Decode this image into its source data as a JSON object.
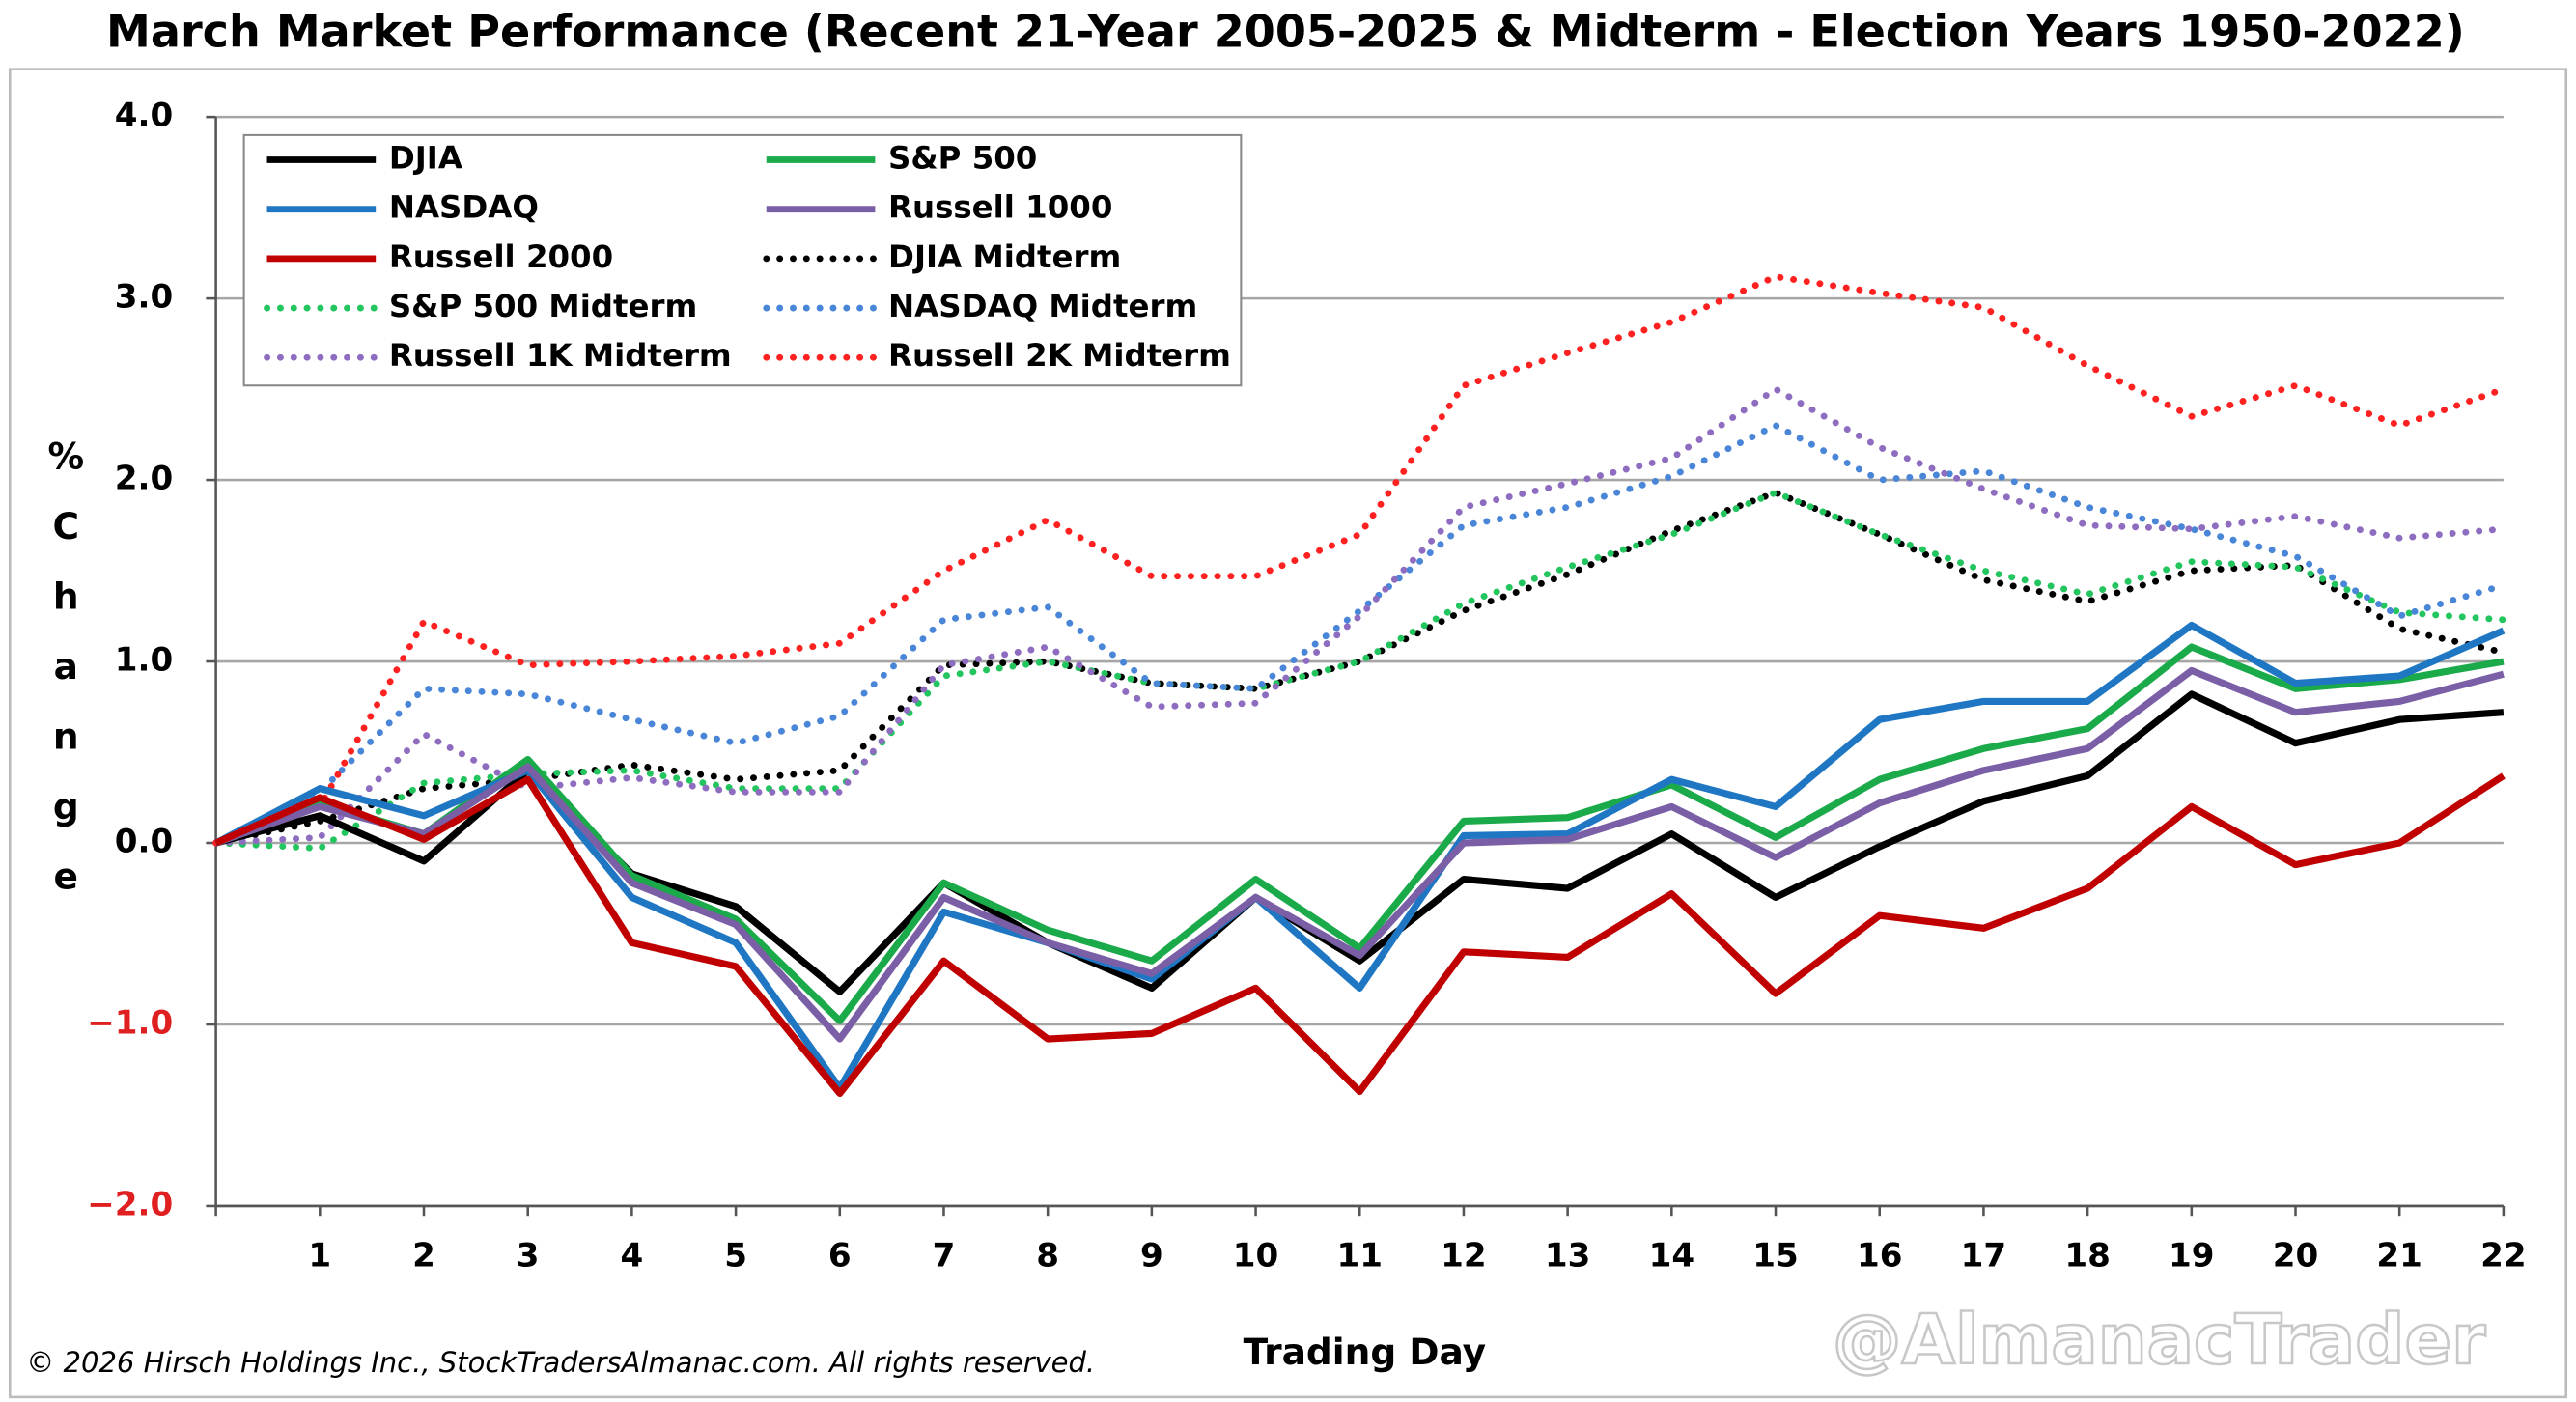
{
  "chart_data": {
    "type": "line",
    "title": "March Market Performance (Recent 21-Year 2005-2025 & Midterm - Election Years 1950-2022)",
    "y_label": "% Change",
    "x_label": "Trading Day",
    "footer": "© 2026 Hirsch Holdings Inc., StockTradersAlmanac.com. All rights reserved.",
    "watermark": "@AlmanacTrader",
    "x": [
      0,
      1,
      2,
      3,
      4,
      5,
      6,
      7,
      8,
      9,
      10,
      11,
      12,
      13,
      14,
      15,
      16,
      17,
      18,
      19,
      20,
      21,
      22
    ],
    "xlim": [
      0,
      22
    ],
    "xticks": [
      1,
      2,
      3,
      4,
      5,
      6,
      7,
      8,
      9,
      10,
      11,
      12,
      13,
      14,
      15,
      16,
      17,
      18,
      19,
      20,
      21,
      22
    ],
    "ylim": [
      -2,
      4
    ],
    "yticks": [
      {
        "value": 4,
        "label": "4.0"
      },
      {
        "value": 3,
        "label": "3.0"
      },
      {
        "value": 2,
        "label": "2.0"
      },
      {
        "value": 1,
        "label": "1.0"
      },
      {
        "value": 0,
        "label": "0.0"
      },
      {
        "value": -1,
        "label": "−1.0"
      },
      {
        "value": -2,
        "label": "−2.0"
      }
    ],
    "negative_tick_color": "#e02020",
    "grid": true,
    "legend": "top-left",
    "series": [
      {
        "name": "DJIA",
        "color": "#000000",
        "style": "solid",
        "values": [
          0,
          0.15,
          -0.1,
          0.4,
          -0.17,
          -0.35,
          -0.82,
          -0.22,
          -0.55,
          -0.8,
          -0.3,
          -0.65,
          -0.2,
          -0.25,
          0.05,
          -0.3,
          -0.02,
          0.23,
          0.37,
          0.82,
          0.55,
          0.68,
          0.72
        ]
      },
      {
        "name": "S&P 500",
        "color": "#1aaa4a",
        "style": "solid",
        "values": [
          0,
          0.22,
          0.05,
          0.46,
          -0.18,
          -0.42,
          -0.98,
          -0.22,
          -0.48,
          -0.65,
          -0.2,
          -0.58,
          0.12,
          0.14,
          0.32,
          0.03,
          0.35,
          0.52,
          0.63,
          1.08,
          0.85,
          0.9,
          1.0
        ]
      },
      {
        "name": "NASDAQ",
        "color": "#1f77c4",
        "style": "solid",
        "values": [
          0,
          0.3,
          0.15,
          0.4,
          -0.3,
          -0.55,
          -1.35,
          -0.38,
          -0.55,
          -0.75,
          -0.3,
          -0.8,
          0.04,
          0.05,
          0.35,
          0.2,
          0.68,
          0.78,
          0.78,
          1.2,
          0.88,
          0.92,
          1.17
        ]
      },
      {
        "name": "Russell 1000",
        "color": "#7a5ea6",
        "style": "solid",
        "values": [
          0,
          0.2,
          0.05,
          0.42,
          -0.22,
          -0.45,
          -1.08,
          -0.3,
          -0.55,
          -0.72,
          -0.3,
          -0.62,
          0.0,
          0.02,
          0.2,
          -0.08,
          0.22,
          0.4,
          0.52,
          0.95,
          0.72,
          0.78,
          0.93
        ]
      },
      {
        "name": "Russell 2000",
        "color": "#c00000",
        "style": "solid",
        "values": [
          0,
          0.25,
          0.02,
          0.35,
          -0.55,
          -0.68,
          -1.38,
          -0.65,
          -1.08,
          -1.05,
          -0.8,
          -1.37,
          -0.6,
          -0.63,
          -0.28,
          -0.83,
          -0.4,
          -0.47,
          -0.25,
          0.2,
          -0.12,
          0.0,
          0.37
        ]
      },
      {
        "name": "DJIA Midterm",
        "color": "#000000",
        "style": "dotted",
        "values": [
          0,
          0.12,
          0.3,
          0.35,
          0.43,
          0.35,
          0.4,
          0.98,
          1.0,
          0.88,
          0.85,
          1.0,
          1.28,
          1.48,
          1.72,
          1.93,
          1.7,
          1.45,
          1.33,
          1.5,
          1.53,
          1.18,
          1.05
        ]
      },
      {
        "name": "S&P 500 Midterm",
        "color": "#22c55e",
        "style": "dotted",
        "values": [
          0,
          -0.03,
          0.33,
          0.38,
          0.4,
          0.3,
          0.3,
          0.92,
          1.0,
          0.88,
          0.85,
          1.0,
          1.32,
          1.52,
          1.7,
          1.93,
          1.7,
          1.5,
          1.37,
          1.55,
          1.52,
          1.27,
          1.23
        ]
      },
      {
        "name": "NASDAQ Midterm",
        "color": "#4a86d8",
        "style": "dotted",
        "values": [
          0,
          0.28,
          0.85,
          0.82,
          0.68,
          0.55,
          0.7,
          1.23,
          1.3,
          0.88,
          0.85,
          1.28,
          1.75,
          1.85,
          2.02,
          2.3,
          2.0,
          2.05,
          1.85,
          1.73,
          1.58,
          1.25,
          1.42
        ]
      },
      {
        "name": "Russell 1K Midterm",
        "color": "#8e6cc0",
        "style": "dotted",
        "values": [
          0,
          0.03,
          0.6,
          0.3,
          0.36,
          0.28,
          0.28,
          0.98,
          1.08,
          0.75,
          0.77,
          1.25,
          1.85,
          1.98,
          2.12,
          2.5,
          2.18,
          1.95,
          1.75,
          1.73,
          1.8,
          1.68,
          1.73
        ]
      },
      {
        "name": "Russell 2K Midterm",
        "color": "#ff2020",
        "style": "dotted",
        "values": [
          0,
          0.2,
          1.22,
          0.98,
          1.0,
          1.03,
          1.1,
          1.5,
          1.78,
          1.47,
          1.47,
          1.7,
          2.52,
          2.7,
          2.87,
          3.12,
          3.03,
          2.95,
          2.63,
          2.35,
          2.52,
          2.3,
          2.5
        ]
      }
    ]
  }
}
